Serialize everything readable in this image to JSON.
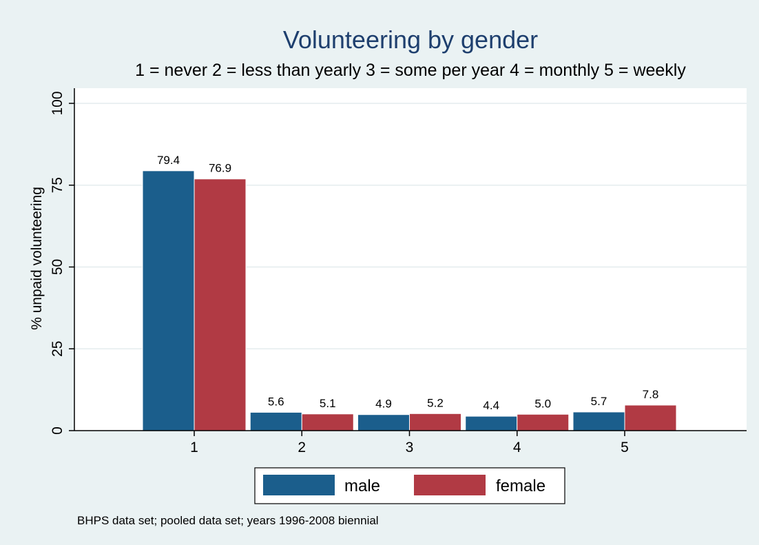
{
  "chart_data": {
    "type": "bar",
    "title": "Volunteering by gender",
    "subtitle": "1 = never 2 = less than yearly 3 = some per year 4 = monthly 5 = weekly",
    "xlabel": "",
    "ylabel": "% unpaid volunteering",
    "categories": [
      "1",
      "2",
      "3",
      "4",
      "5"
    ],
    "series": [
      {
        "name": "male",
        "color": "#1b5e8c",
        "values": [
          79.4,
          5.6,
          4.9,
          4.4,
          5.7
        ],
        "labels": [
          "79.4",
          "5.6",
          "4.9",
          "4.4",
          "5.7"
        ]
      },
      {
        "name": "female",
        "color": "#b13a44",
        "values": [
          76.9,
          5.1,
          5.2,
          5.0,
          7.8
        ],
        "labels": [
          "76.9",
          "5.1",
          "5.2",
          "5.0",
          "7.8"
        ]
      }
    ],
    "ylim": [
      0,
      100
    ],
    "yticks": [
      0,
      25,
      50,
      75,
      100
    ],
    "grid": true,
    "legend": "bottom",
    "note": "BHPS data set; pooled data set; years 1996-2008 biennial"
  }
}
